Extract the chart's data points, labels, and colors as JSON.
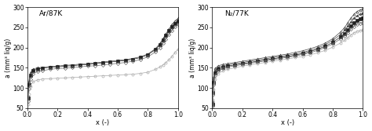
{
  "title_left": "Ar/87K",
  "title_right": "N₂/77K",
  "ylabel": "a (mm³ liq/g)",
  "xlabel": "x (-)",
  "xlim": [
    0.0,
    1.0
  ],
  "ylim": [
    50,
    300
  ],
  "yticks": [
    50,
    100,
    150,
    200,
    250,
    300
  ],
  "xticks": [
    0.0,
    0.2,
    0.4,
    0.6,
    0.8,
    1.0
  ],
  "figsize": [
    4.74,
    1.67
  ],
  "dpi": 100,
  "series_Ar": [
    {
      "marker": "^",
      "fillstyle": "none",
      "color": "#444444",
      "x": [
        0.005,
        0.01,
        0.02,
        0.04,
        0.07,
        0.1,
        0.15,
        0.2,
        0.25,
        0.3,
        0.35,
        0.4,
        0.45,
        0.5,
        0.55,
        0.6,
        0.65,
        0.7,
        0.75,
        0.8,
        0.85,
        0.88,
        0.9,
        0.92,
        0.94,
        0.96,
        0.98,
        1.0
      ],
      "y": [
        80,
        115,
        138,
        147,
        150,
        151,
        153,
        154,
        156,
        157,
        159,
        160,
        162,
        164,
        166,
        168,
        170,
        173,
        177,
        184,
        197,
        210,
        222,
        234,
        246,
        257,
        266,
        272
      ]
    },
    {
      "marker": "s",
      "fillstyle": "full",
      "color": "#222222",
      "x": [
        0.005,
        0.01,
        0.02,
        0.04,
        0.07,
        0.1,
        0.15,
        0.2,
        0.25,
        0.3,
        0.35,
        0.4,
        0.45,
        0.5,
        0.55,
        0.6,
        0.65,
        0.7,
        0.75,
        0.8,
        0.85,
        0.88,
        0.9,
        0.92,
        0.94,
        0.96,
        0.98,
        1.0
      ],
      "y": [
        75,
        108,
        132,
        143,
        147,
        149,
        151,
        152,
        154,
        155,
        157,
        158,
        160,
        162,
        164,
        166,
        168,
        171,
        175,
        182,
        195,
        207,
        218,
        230,
        241,
        251,
        260,
        266
      ]
    },
    {
      "marker": "D",
      "fillstyle": "none",
      "color": "#666666",
      "x": [
        0.005,
        0.01,
        0.02,
        0.04,
        0.07,
        0.1,
        0.15,
        0.2,
        0.25,
        0.3,
        0.35,
        0.4,
        0.45,
        0.5,
        0.55,
        0.6,
        0.65,
        0.7,
        0.75,
        0.8,
        0.85,
        0.88,
        0.9,
        0.92,
        0.94,
        0.96,
        0.98,
        1.0
      ],
      "y": [
        68,
        98,
        122,
        136,
        141,
        143,
        146,
        148,
        149,
        151,
        152,
        154,
        155,
        157,
        159,
        161,
        163,
        166,
        170,
        177,
        189,
        200,
        210,
        221,
        232,
        242,
        251,
        257
      ]
    },
    {
      "marker": "o",
      "fillstyle": "none",
      "color": "#aaaaaa",
      "x": [
        0.005,
        0.01,
        0.02,
        0.04,
        0.07,
        0.1,
        0.15,
        0.2,
        0.25,
        0.3,
        0.35,
        0.4,
        0.45,
        0.5,
        0.55,
        0.6,
        0.65,
        0.7,
        0.75,
        0.8,
        0.85,
        0.88,
        0.9,
        0.92,
        0.94,
        0.96,
        0.98,
        1.0
      ],
      "y": [
        60,
        85,
        105,
        116,
        120,
        122,
        123,
        124,
        125,
        126,
        127,
        128,
        129,
        130,
        131,
        132,
        133,
        134,
        136,
        139,
        146,
        152,
        157,
        163,
        170,
        178,
        188,
        196
      ]
    }
  ],
  "series_N2": [
    {
      "marker": "^",
      "fillstyle": "none",
      "color": "#444444",
      "x": [
        0.003,
        0.006,
        0.01,
        0.02,
        0.04,
        0.07,
        0.1,
        0.15,
        0.2,
        0.25,
        0.3,
        0.35,
        0.4,
        0.45,
        0.5,
        0.55,
        0.6,
        0.65,
        0.7,
        0.75,
        0.8,
        0.85,
        0.88,
        0.9,
        0.92,
        0.94,
        0.96,
        0.98,
        1.0
      ],
      "y": [
        70,
        100,
        128,
        148,
        155,
        158,
        160,
        163,
        166,
        169,
        172,
        175,
        178,
        181,
        184,
        188,
        192,
        197,
        203,
        211,
        222,
        238,
        250,
        262,
        273,
        282,
        289,
        293,
        296
      ]
    },
    {
      "marker": "*",
      "fillstyle": "none",
      "color": "#444444",
      "x": [
        0.003,
        0.006,
        0.01,
        0.02,
        0.04,
        0.07,
        0.1,
        0.15,
        0.2,
        0.25,
        0.3,
        0.35,
        0.4,
        0.45,
        0.5,
        0.55,
        0.6,
        0.65,
        0.7,
        0.75,
        0.8,
        0.85,
        0.88,
        0.9,
        0.92,
        0.94,
        0.96,
        0.98,
        1.0
      ],
      "y": [
        65,
        94,
        122,
        143,
        151,
        155,
        157,
        160,
        163,
        166,
        169,
        172,
        175,
        178,
        181,
        184,
        188,
        193,
        199,
        207,
        218,
        232,
        243,
        253,
        263,
        272,
        278,
        283,
        285
      ]
    },
    {
      "marker": "s",
      "fillstyle": "full",
      "color": "#222222",
      "x": [
        0.003,
        0.006,
        0.01,
        0.02,
        0.04,
        0.07,
        0.1,
        0.15,
        0.2,
        0.25,
        0.3,
        0.35,
        0.4,
        0.45,
        0.5,
        0.55,
        0.6,
        0.65,
        0.7,
        0.75,
        0.8,
        0.85,
        0.88,
        0.9,
        0.92,
        0.94,
        0.96,
        0.98,
        1.0
      ],
      "y": [
        60,
        88,
        114,
        137,
        147,
        151,
        154,
        157,
        160,
        163,
        166,
        169,
        172,
        175,
        178,
        181,
        185,
        190,
        196,
        203,
        213,
        226,
        235,
        244,
        253,
        261,
        267,
        271,
        273
      ]
    },
    {
      "marker": "D",
      "fillstyle": "none",
      "color": "#666666",
      "x": [
        0.003,
        0.006,
        0.01,
        0.02,
        0.04,
        0.07,
        0.1,
        0.15,
        0.2,
        0.25,
        0.3,
        0.35,
        0.4,
        0.45,
        0.5,
        0.55,
        0.6,
        0.65,
        0.7,
        0.75,
        0.8,
        0.85,
        0.88,
        0.9,
        0.92,
        0.94,
        0.96,
        0.98,
        1.0
      ],
      "y": [
        55,
        82,
        108,
        132,
        143,
        148,
        151,
        155,
        158,
        161,
        164,
        167,
        170,
        173,
        176,
        179,
        183,
        187,
        193,
        200,
        209,
        221,
        229,
        237,
        245,
        252,
        257,
        260,
        262
      ]
    },
    {
      "marker": "o",
      "fillstyle": "none",
      "color": "#aaaaaa",
      "x": [
        0.003,
        0.006,
        0.01,
        0.02,
        0.04,
        0.07,
        0.1,
        0.15,
        0.2,
        0.25,
        0.3,
        0.35,
        0.4,
        0.45,
        0.5,
        0.55,
        0.6,
        0.65,
        0.7,
        0.75,
        0.8,
        0.85,
        0.88,
        0.9,
        0.92,
        0.94,
        0.96,
        0.98,
        1.0
      ],
      "y": [
        50,
        72,
        96,
        122,
        136,
        142,
        146,
        150,
        154,
        157,
        160,
        163,
        166,
        169,
        172,
        175,
        178,
        182,
        187,
        193,
        201,
        211,
        218,
        225,
        231,
        236,
        240,
        242,
        243
      ]
    }
  ]
}
